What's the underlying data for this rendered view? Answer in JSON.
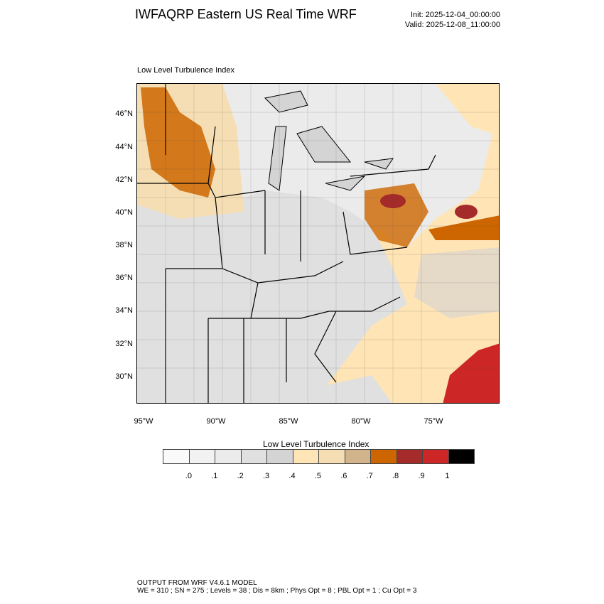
{
  "header": {
    "title": "IWFAQRP Eastern US Real Time WRF",
    "init": "Init: 2025-12-04_00:00:00",
    "valid": "Valid: 2025-12-08_11:00:00"
  },
  "plot": {
    "title": "Low Level Turbulence Index",
    "lat_labels": [
      "46°N",
      "44°N",
      "42°N",
      "40°N",
      "38°N",
      "36°N",
      "34°N",
      "32°N",
      "30°N"
    ],
    "lon_labels": [
      "95°W",
      "90°W",
      "85°W",
      "80°W",
      "75°W"
    ]
  },
  "colorbar": {
    "title": "Low Level Turbulence Index",
    "colors": [
      "#fafafa",
      "#f2f2f2",
      "#ebebeb",
      "#e0e0e0",
      "#d4d4d4",
      "#ffe4b5",
      "#f5deb3",
      "#d2b48c",
      "#cd6600",
      "#a52a2a",
      "#cd2626",
      "#000000"
    ],
    "labels": [
      ".0",
      ".1",
      ".2",
      ".3",
      ".4",
      ".5",
      ".6",
      ".7",
      ".8",
      ".9",
      "1"
    ]
  },
  "footer": {
    "line1": "OUTPUT FROM WRF V4.6.1 MODEL",
    "line2": "WE = 310 ; SN = 275 ; Levels = 38 ; Dis = 8km ; Phys Opt = 8 ; PBL Opt = 1 ; Cu Opt = 3"
  }
}
